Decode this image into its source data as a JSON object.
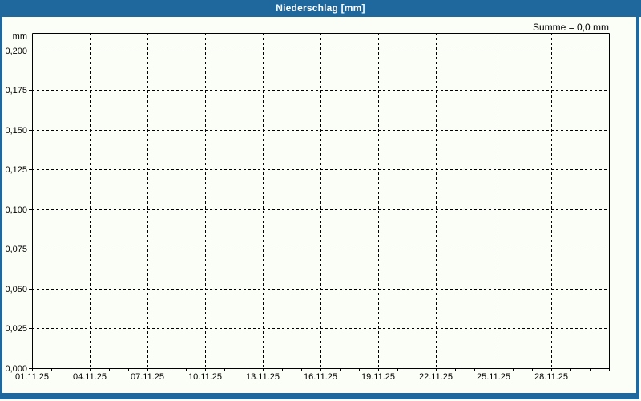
{
  "window": {
    "title": "Niederschlag [mm]"
  },
  "summary": {
    "label": "Summe = 0,0 mm"
  },
  "colors": {
    "titlebar_blue": "#1e689e",
    "frame_blue": "#1e689e",
    "background": "#fbfdf7",
    "grid": "#000000",
    "title_text": "#ffffff"
  },
  "chart_data": {
    "type": "bar",
    "title": "Niederschlag [mm]",
    "unit_label": "mm",
    "annotation": "Summe = 0,0 mm",
    "sum_mm": 0.0,
    "grid": "dashed",
    "legend": "none",
    "x_axis": {
      "tick_labels": [
        "01.11.25",
        "04.11.25",
        "07.11.25",
        "10.11.25",
        "13.11.25",
        "16.11.25",
        "19.11.25",
        "22.11.25",
        "25.11.25",
        "28.11.25"
      ],
      "label_days": [
        1,
        4,
        7,
        10,
        13,
        16,
        19,
        22,
        25,
        28
      ],
      "gridline_days": [
        4,
        7,
        10,
        13,
        16,
        19,
        22,
        25,
        28
      ],
      "minor_tick_days": [
        1,
        2,
        3,
        4,
        5,
        6,
        7,
        8,
        9,
        10,
        11,
        12,
        13,
        14,
        15,
        16,
        17,
        18,
        19,
        20,
        21,
        22,
        23,
        24,
        25,
        26,
        27,
        28,
        29,
        30,
        31
      ],
      "range_days": [
        1,
        31
      ]
    },
    "y_axis": {
      "tick_labels": [
        "0,000",
        "0,025",
        "0,050",
        "0,075",
        "0,100",
        "0,125",
        "0,150",
        "0,175",
        "0,200"
      ],
      "tick_values": [
        0,
        0.025,
        0.05,
        0.075,
        0.1,
        0.125,
        0.15,
        0.175,
        0.2
      ],
      "ylim": [
        0,
        0.211
      ],
      "unit": "mm"
    },
    "series": [
      {
        "name": "Niederschlag",
        "values": []
      }
    ]
  }
}
